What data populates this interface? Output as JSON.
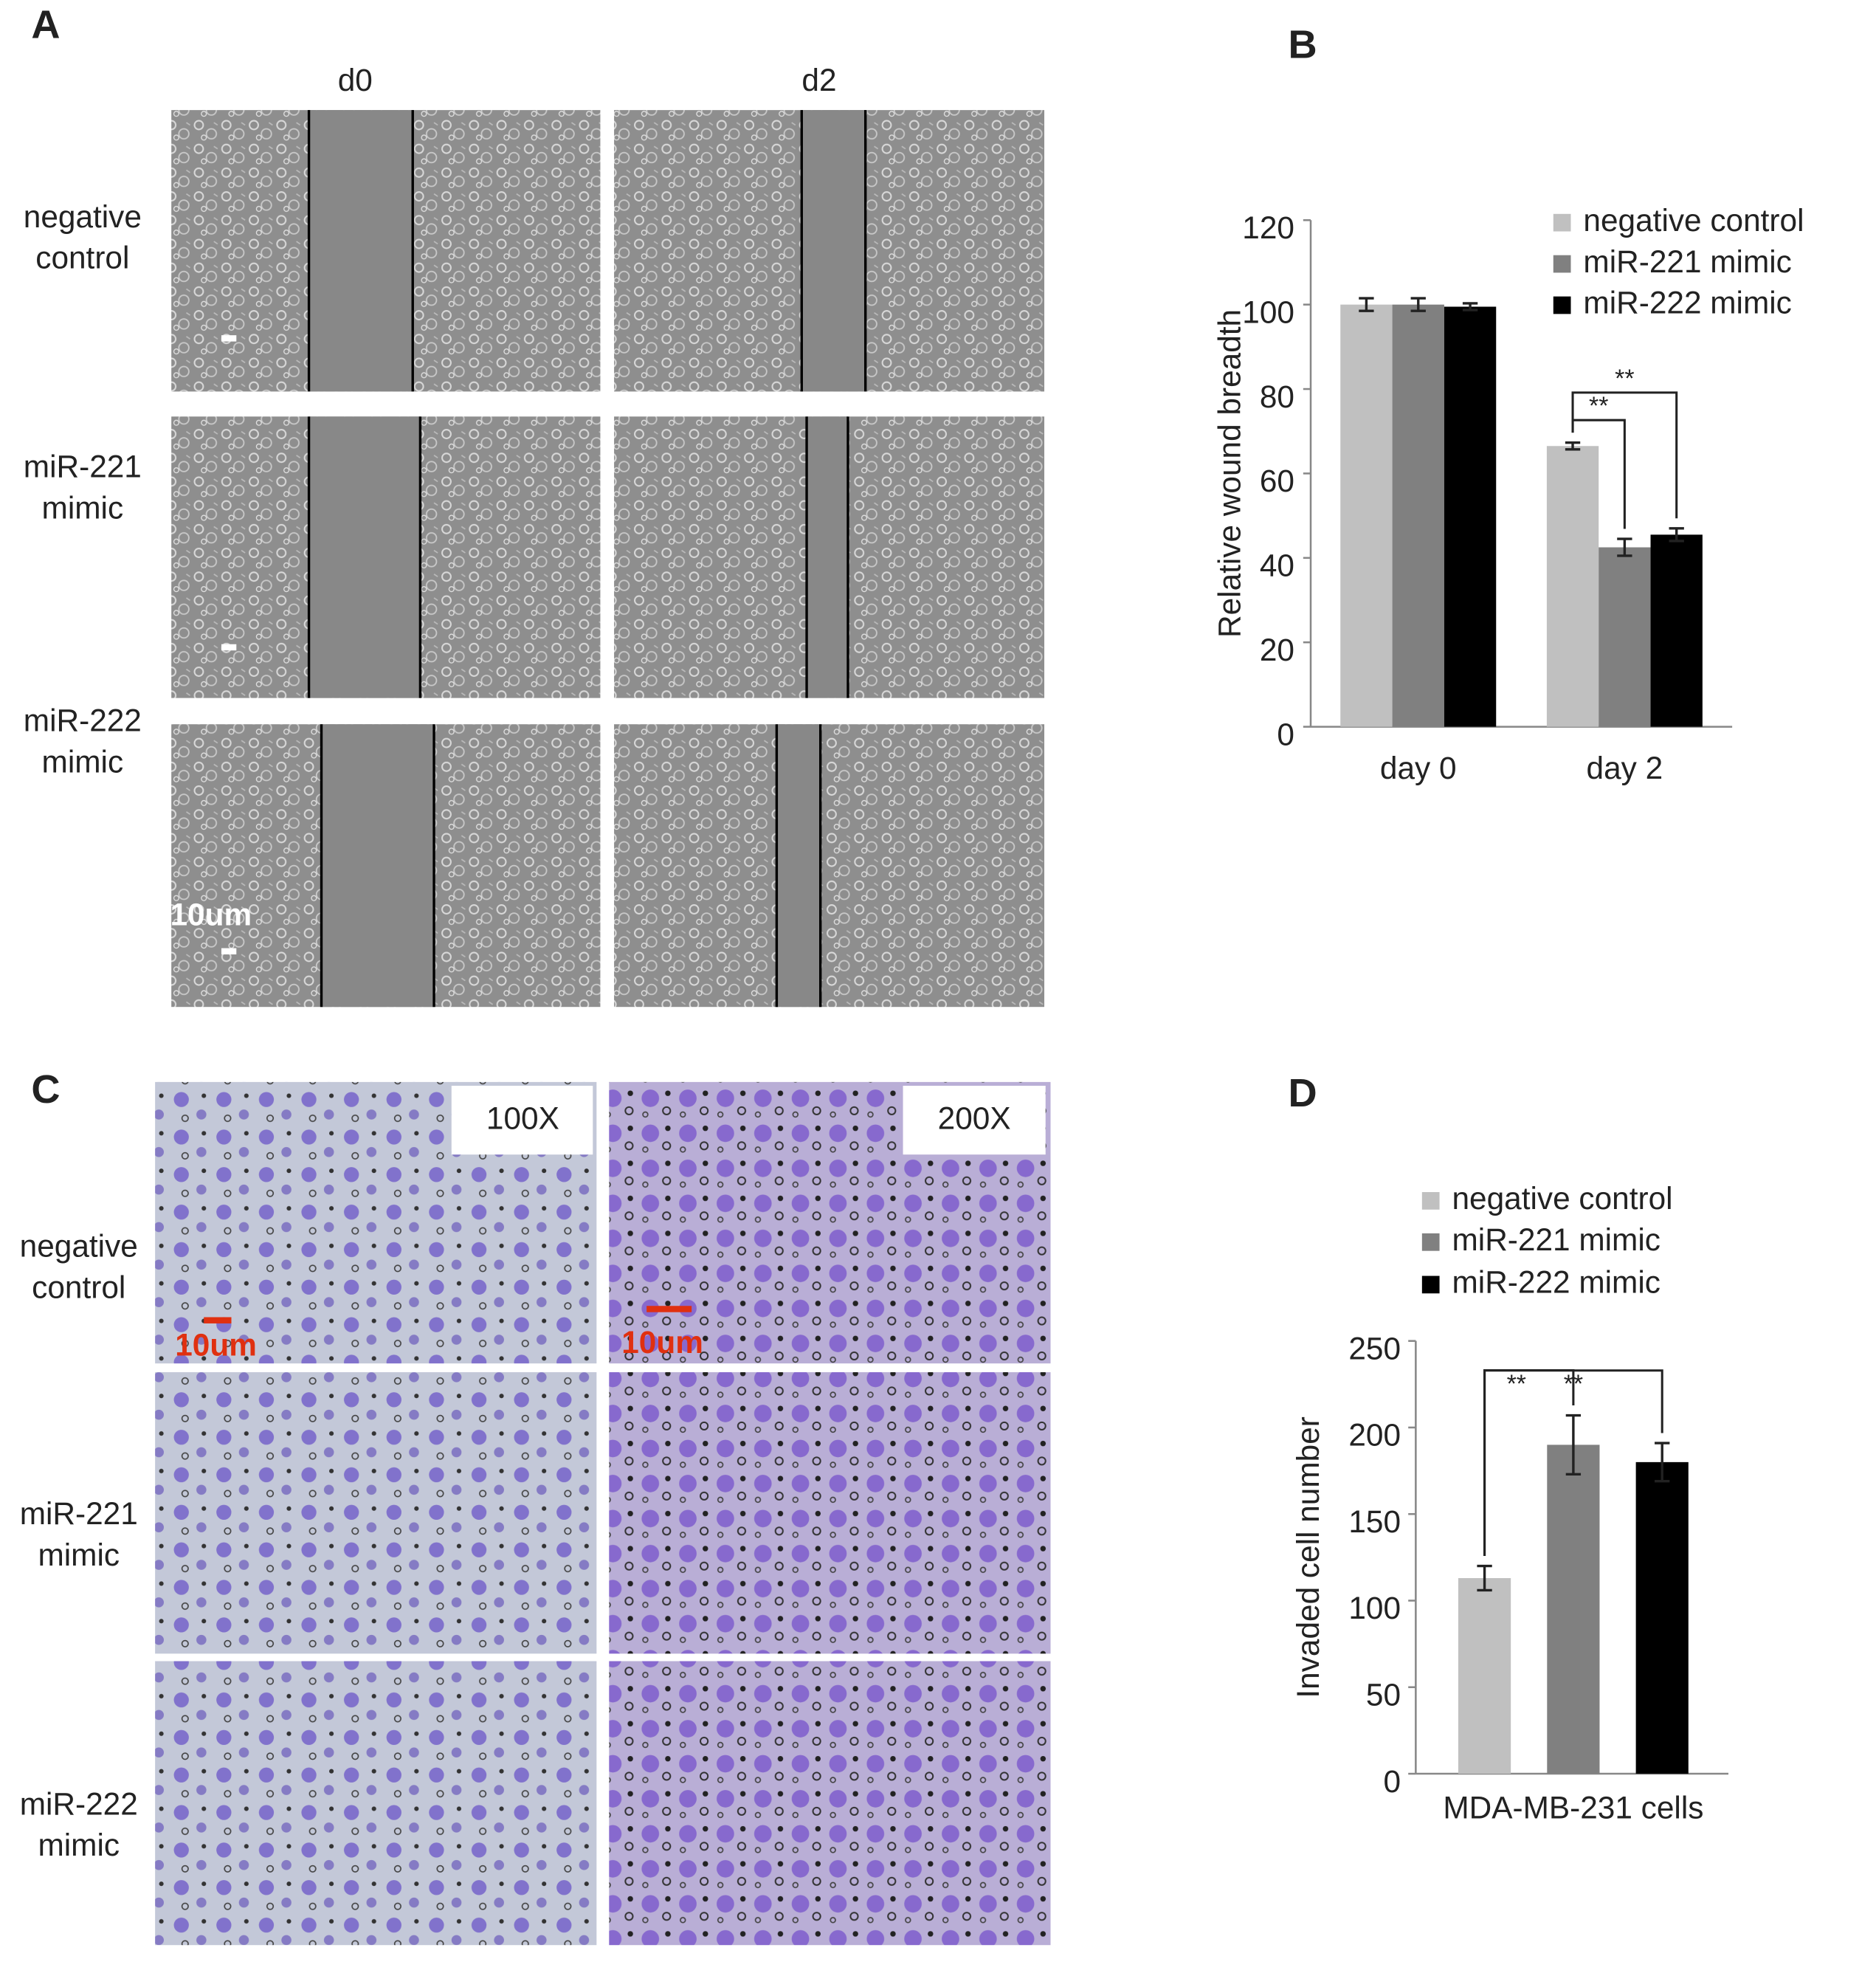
{
  "panels": {
    "A": {
      "label": "A",
      "columns": [
        "d0",
        "d2"
      ],
      "rows": [
        [
          "negative",
          "control"
        ],
        [
          "miR-221",
          "mimic"
        ],
        [
          "miR-222",
          "mimic"
        ]
      ],
      "scale_bar": "10um"
    },
    "B": {
      "label": "B"
    },
    "C": {
      "label": "C",
      "magnifications": [
        "100X",
        "200X"
      ],
      "rows": [
        [
          "negative",
          "control"
        ],
        [
          "miR-221",
          "mimic"
        ],
        [
          "miR-222",
          "mimic"
        ]
      ],
      "scale_bar": "10um"
    },
    "D": {
      "label": "D"
    }
  },
  "chart_data": [
    {
      "type": "bar",
      "y_label": "Relative wound breadth",
      "categories": [
        "day 0",
        "day 2"
      ],
      "series": [
        {
          "name": "negative control",
          "color": "#c0c0c0",
          "values": [
            100,
            66.5
          ],
          "errors": [
            1.5,
            0.8
          ]
        },
        {
          "name": "miR-221 mimic",
          "color": "#808080",
          "values": [
            100,
            42.5
          ],
          "errors": [
            1.5,
            2
          ]
        },
        {
          "name": "miR-222 mimic",
          "color": "#000000",
          "values": [
            99.5,
            45.5
          ],
          "errors": [
            0.8,
            1.5
          ]
        }
      ],
      "ylim": [
        0,
        120
      ],
      "yticks": [
        0,
        20,
        40,
        60,
        80,
        100,
        120
      ],
      "annotations": [
        "**",
        "**"
      ]
    },
    {
      "type": "bar",
      "y_label": "Invaded cell number",
      "categories": [
        "MDA-MB-231 cells"
      ],
      "series": [
        {
          "name": "negative control",
          "color": "#c0c0c0",
          "values": [
            113
          ],
          "errors": [
            7
          ]
        },
        {
          "name": "miR-221 mimic",
          "color": "#808080",
          "values": [
            190
          ],
          "errors": [
            17
          ]
        },
        {
          "name": "miR-222 mimic",
          "color": "#000000",
          "values": [
            180
          ],
          "errors": [
            11
          ]
        }
      ],
      "ylim": [
        0,
        250
      ],
      "yticks": [
        0,
        50,
        100,
        150,
        200,
        250
      ],
      "annotations": [
        "**",
        "**"
      ]
    }
  ]
}
